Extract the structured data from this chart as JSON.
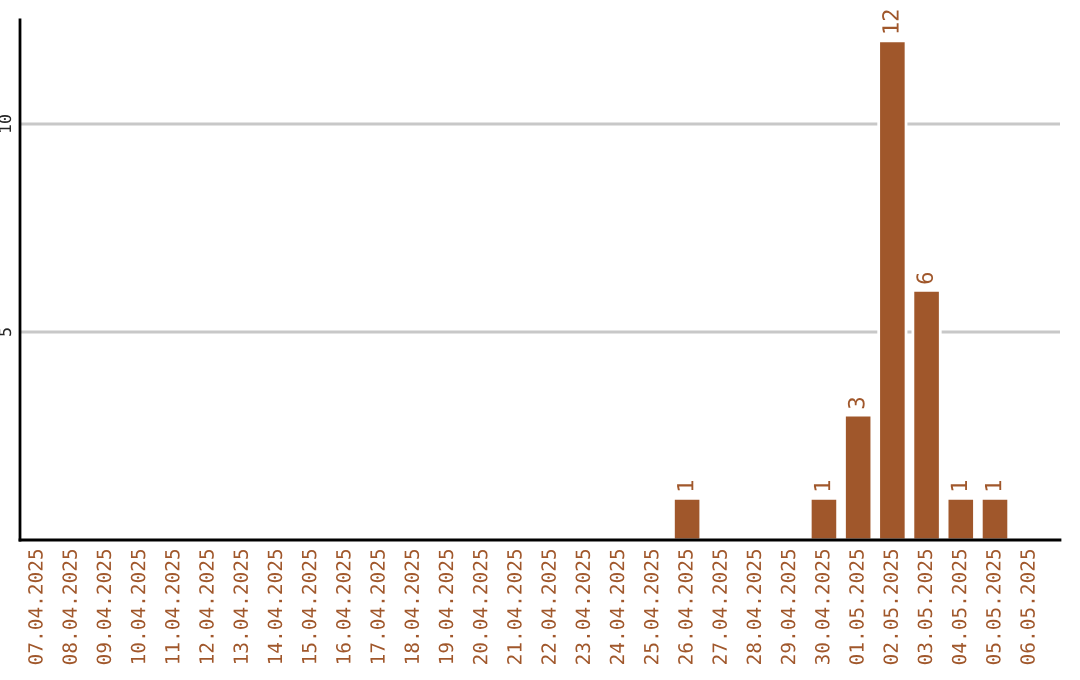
{
  "chart_data": {
    "type": "bar",
    "categories": [
      "07.04.2025",
      "08.04.2025",
      "09.04.2025",
      "10.04.2025",
      "11.04.2025",
      "12.04.2025",
      "13.04.2025",
      "14.04.2025",
      "15.04.2025",
      "16.04.2025",
      "17.04.2025",
      "18.04.2025",
      "19.04.2025",
      "20.04.2025",
      "21.04.2025",
      "22.04.2025",
      "23.04.2025",
      "24.04.2025",
      "25.04.2025",
      "26.04.2025",
      "27.04.2025",
      "28.04.2025",
      "29.04.2025",
      "30.04.2025",
      "01.05.2025",
      "02.05.2025",
      "03.05.2025",
      "04.05.2025",
      "05.05.2025",
      "06.05.2025"
    ],
    "values": [
      null,
      null,
      null,
      null,
      null,
      null,
      null,
      null,
      null,
      null,
      null,
      null,
      null,
      null,
      null,
      null,
      null,
      null,
      null,
      1,
      null,
      null,
      null,
      1,
      3,
      12,
      6,
      1,
      1,
      null
    ],
    "value_labels": [
      null,
      null,
      null,
      null,
      null,
      null,
      null,
      null,
      null,
      null,
      null,
      null,
      null,
      null,
      null,
      null,
      null,
      null,
      null,
      "1",
      null,
      null,
      null,
      "1",
      "3",
      "12",
      "6",
      "1",
      "1",
      null
    ],
    "color": "#a0572b",
    "ylim": [
      0,
      12.5
    ],
    "yticks": [
      5,
      10
    ],
    "grid": "y"
  }
}
